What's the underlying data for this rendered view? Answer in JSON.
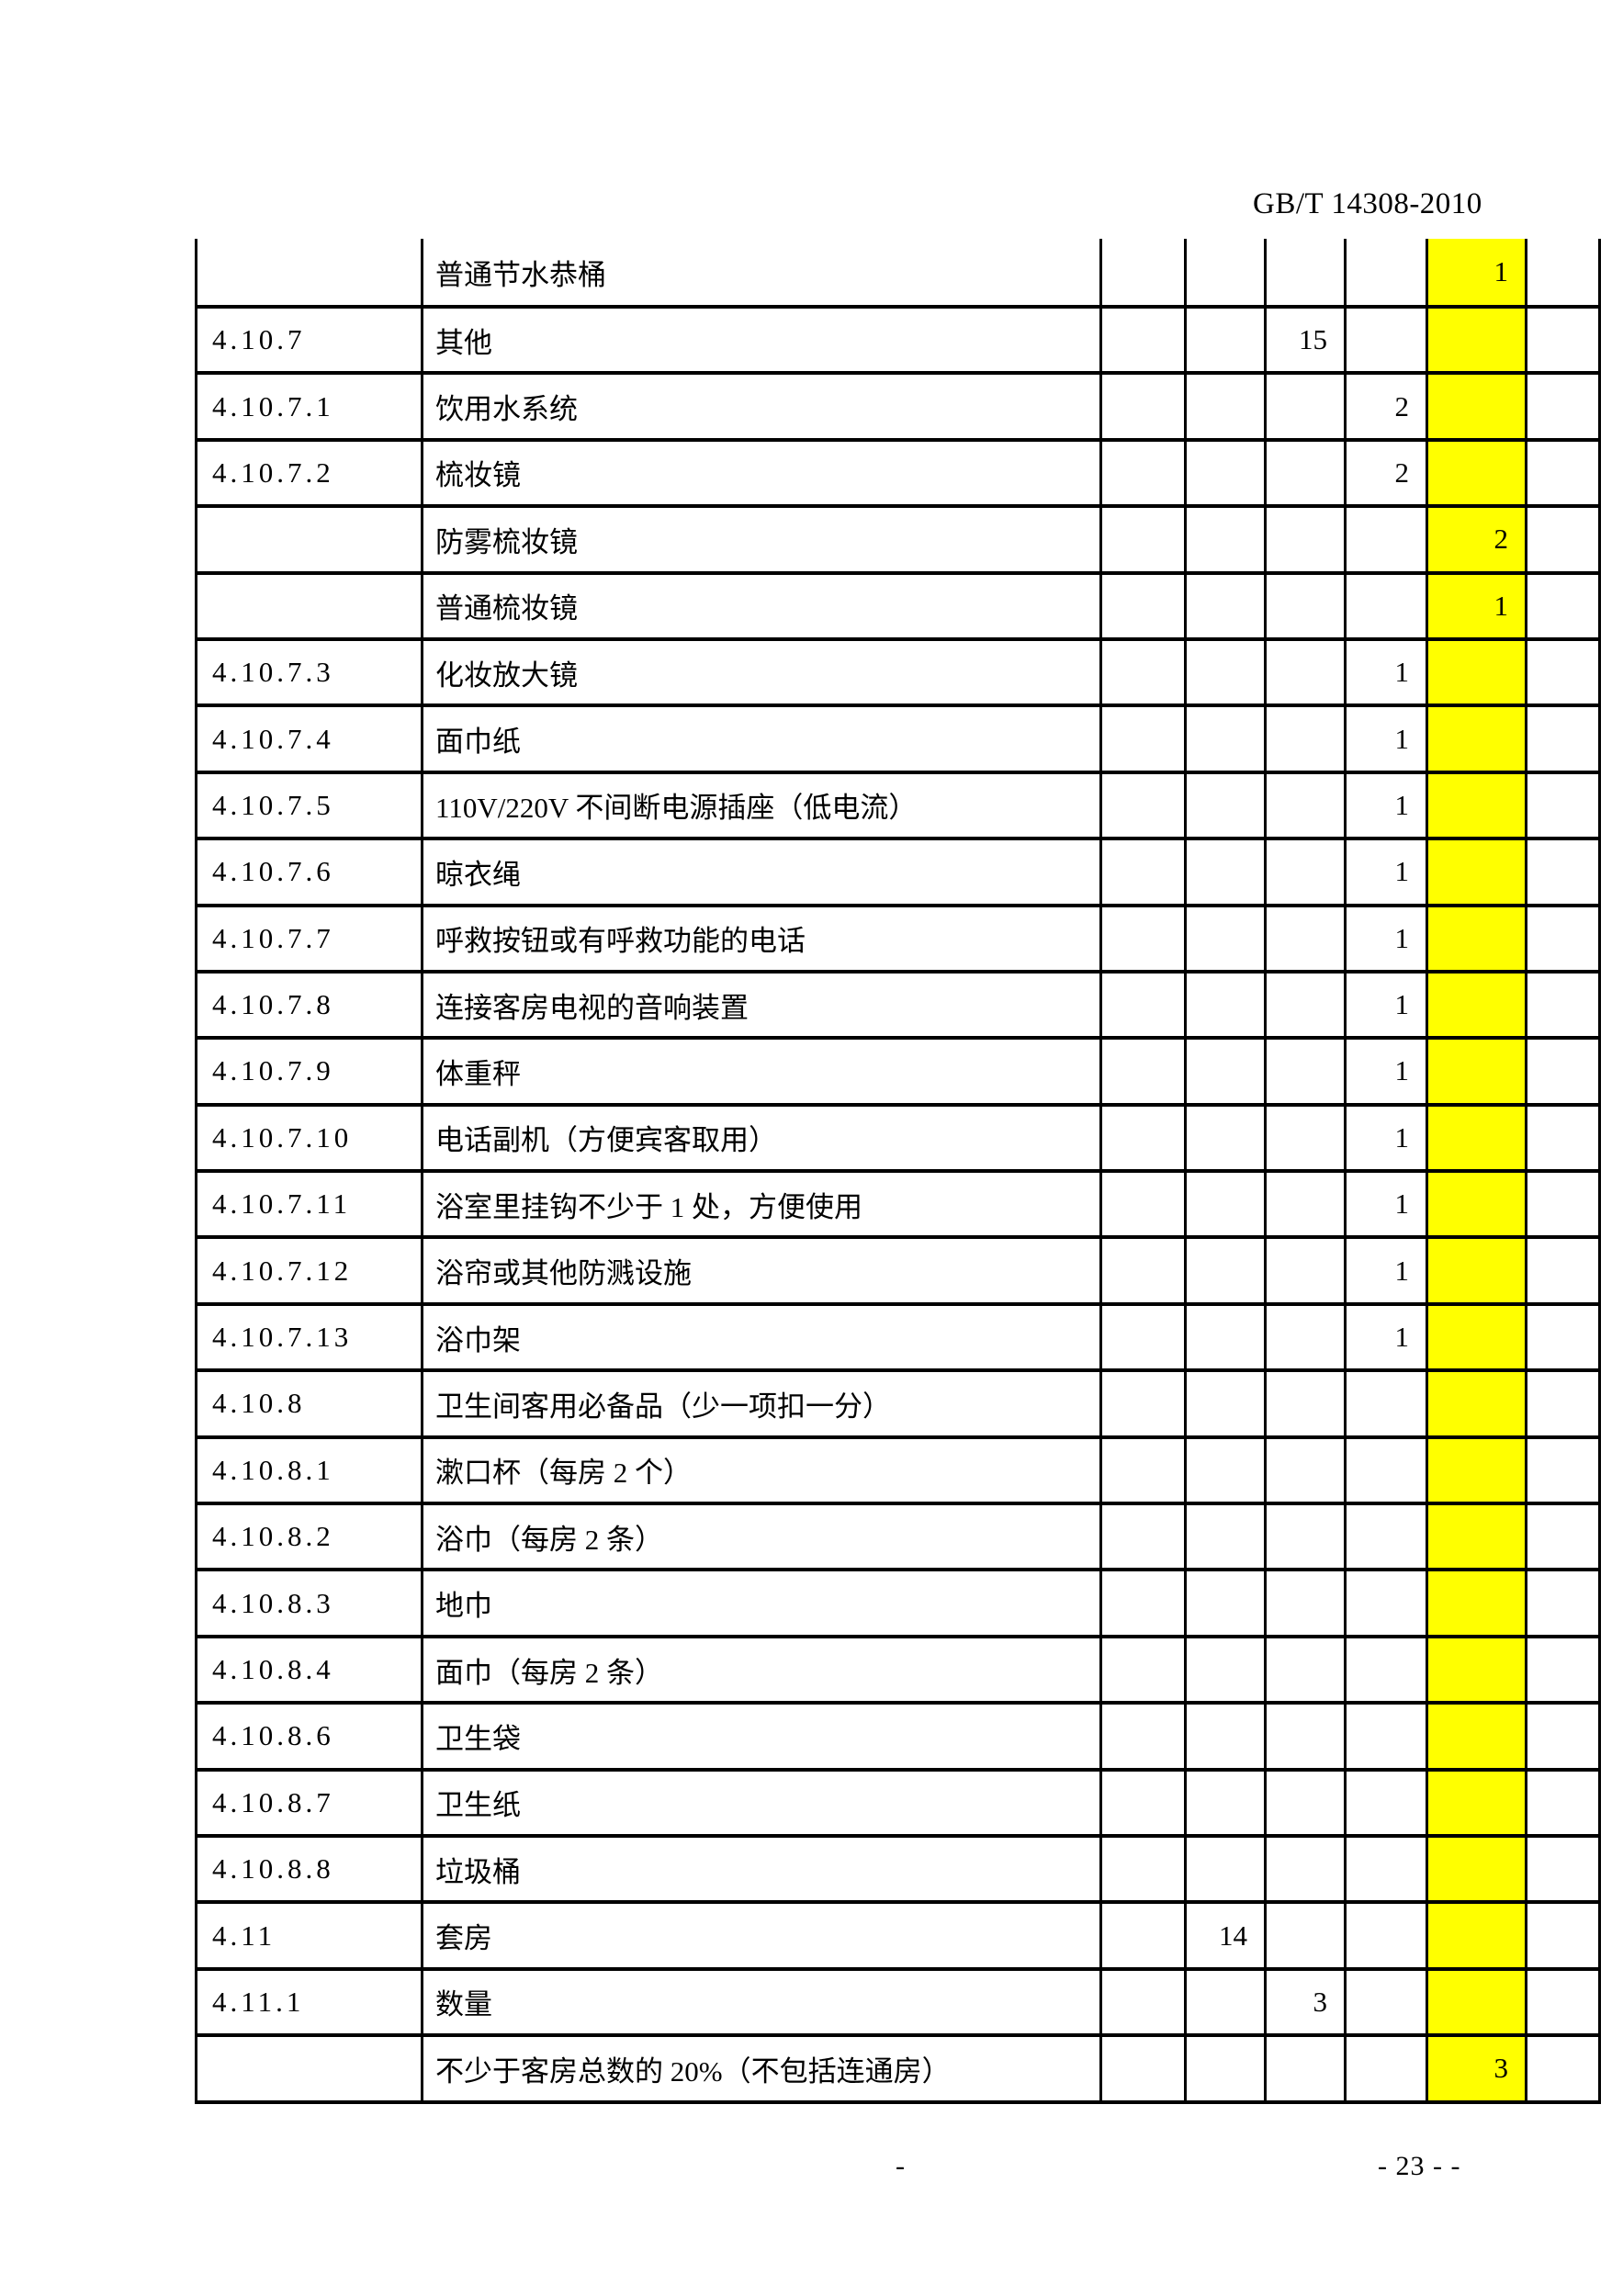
{
  "header": {
    "doc_number": "GB/T 14308-2010"
  },
  "footer": {
    "left_text": "-",
    "page_number": "- 23 - -"
  },
  "table": {
    "highlight_color": "#ffff00",
    "border_color": "#000000",
    "rows": [
      {
        "code": "",
        "desc": "普通节水恭桶",
        "c1": "",
        "c2": "",
        "c3": "",
        "c4": "",
        "c5": "1",
        "c6": ""
      },
      {
        "code": "4.10.7",
        "desc": "其他",
        "c1": "",
        "c2": "",
        "c3": "15",
        "c4": "",
        "c5": "",
        "c6": ""
      },
      {
        "code": "4.10.7.1",
        "desc": "饮用水系统",
        "c1": "",
        "c2": "",
        "c3": "",
        "c4": "2",
        "c5": "",
        "c6": ""
      },
      {
        "code": "4.10.7.2",
        "desc": "梳妆镜",
        "c1": "",
        "c2": "",
        "c3": "",
        "c4": "2",
        "c5": "",
        "c6": ""
      },
      {
        "code": "",
        "desc": "防雾梳妆镜",
        "c1": "",
        "c2": "",
        "c3": "",
        "c4": "",
        "c5": "2",
        "c6": ""
      },
      {
        "code": "",
        "desc": "普通梳妆镜",
        "c1": "",
        "c2": "",
        "c3": "",
        "c4": "",
        "c5": "1",
        "c6": ""
      },
      {
        "code": "4.10.7.3",
        "desc": "化妆放大镜",
        "c1": "",
        "c2": "",
        "c3": "",
        "c4": "1",
        "c5": "",
        "c6": ""
      },
      {
        "code": "4.10.7.4",
        "desc": "面巾纸",
        "c1": "",
        "c2": "",
        "c3": "",
        "c4": "1",
        "c5": "",
        "c6": ""
      },
      {
        "code": "4.10.7.5",
        "desc": "110V/220V 不间断电源插座（低电流）",
        "c1": "",
        "c2": "",
        "c3": "",
        "c4": "1",
        "c5": "",
        "c6": ""
      },
      {
        "code": "4.10.7.6",
        "desc": "晾衣绳",
        "c1": "",
        "c2": "",
        "c3": "",
        "c4": "1",
        "c5": "",
        "c6": ""
      },
      {
        "code": "4.10.7.7",
        "desc": "呼救按钮或有呼救功能的电话",
        "c1": "",
        "c2": "",
        "c3": "",
        "c4": "1",
        "c5": "",
        "c6": ""
      },
      {
        "code": "4.10.7.8",
        "desc": "连接客房电视的音响装置",
        "c1": "",
        "c2": "",
        "c3": "",
        "c4": "1",
        "c5": "",
        "c6": ""
      },
      {
        "code": "4.10.7.9",
        "desc": "体重秤",
        "c1": "",
        "c2": "",
        "c3": "",
        "c4": "1",
        "c5": "",
        "c6": ""
      },
      {
        "code": "4.10.7.10",
        "desc": "电话副机（方便宾客取用）",
        "c1": "",
        "c2": "",
        "c3": "",
        "c4": "1",
        "c5": "",
        "c6": ""
      },
      {
        "code": "4.10.7.11",
        "desc": "浴室里挂钩不少于 1 处，方便使用",
        "c1": "",
        "c2": "",
        "c3": "",
        "c4": "1",
        "c5": "",
        "c6": ""
      },
      {
        "code": "4.10.7.12",
        "desc": "浴帘或其他防溅设施",
        "c1": "",
        "c2": "",
        "c3": "",
        "c4": "1",
        "c5": "",
        "c6": ""
      },
      {
        "code": "4.10.7.13",
        "desc": "浴巾架",
        "c1": "",
        "c2": "",
        "c3": "",
        "c4": "1",
        "c5": "",
        "c6": ""
      },
      {
        "code": "4.10.8",
        "desc": "卫生间客用必备品（少一项扣一分）",
        "c1": "",
        "c2": "",
        "c3": "",
        "c4": "",
        "c5": "",
        "c6": ""
      },
      {
        "code": "4.10.8.1",
        "desc": "漱口杯（每房 2 个）",
        "c1": "",
        "c2": "",
        "c3": "",
        "c4": "",
        "c5": "",
        "c6": ""
      },
      {
        "code": "4.10.8.2",
        "desc": "浴巾（每房 2 条）",
        "c1": "",
        "c2": "",
        "c3": "",
        "c4": "",
        "c5": "",
        "c6": ""
      },
      {
        "code": "4.10.8.3",
        "desc": "地巾",
        "c1": "",
        "c2": "",
        "c3": "",
        "c4": "",
        "c5": "",
        "c6": ""
      },
      {
        "code": "4.10.8.4",
        "desc": "面巾（每房 2 条）",
        "c1": "",
        "c2": "",
        "c3": "",
        "c4": "",
        "c5": "",
        "c6": ""
      },
      {
        "code": "4.10.8.6",
        "desc": "卫生袋",
        "c1": "",
        "c2": "",
        "c3": "",
        "c4": "",
        "c5": "",
        "c6": ""
      },
      {
        "code": "4.10.8.7",
        "desc": "卫生纸",
        "c1": "",
        "c2": "",
        "c3": "",
        "c4": "",
        "c5": "",
        "c6": ""
      },
      {
        "code": "4.10.8.8",
        "desc": "垃圾桶",
        "c1": "",
        "c2": "",
        "c3": "",
        "c4": "",
        "c5": "",
        "c6": ""
      },
      {
        "code": "4.11",
        "desc": "套房",
        "c1": "",
        "c2": "14",
        "c3": "",
        "c4": "",
        "c5": "",
        "c6": ""
      },
      {
        "code": "4.11.1",
        "desc": "数量",
        "c1": "",
        "c2": "",
        "c3": "3",
        "c4": "",
        "c5": "",
        "c6": ""
      },
      {
        "code": "",
        "desc": "不少于客房总数的 20%（不包括连通房）",
        "c1": "",
        "c2": "",
        "c3": "",
        "c4": "",
        "c5": "3",
        "c6": ""
      }
    ]
  }
}
